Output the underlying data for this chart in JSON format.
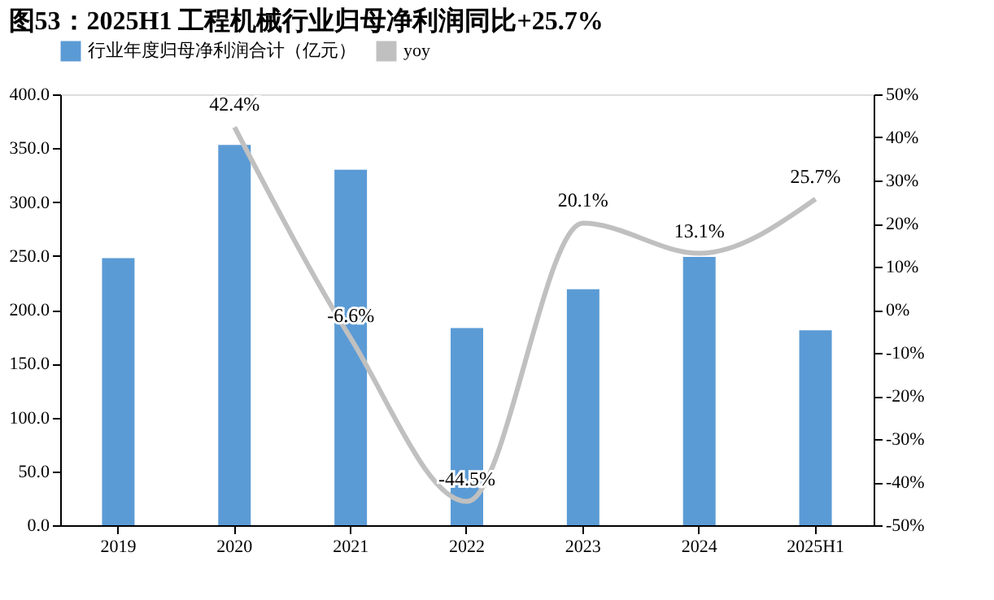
{
  "chart_data": {
    "type": "bar",
    "title": "图53：2025H1 工程机械行业归母净利润同比+25.7%",
    "categories": [
      "2019",
      "2020",
      "2021",
      "2022",
      "2023",
      "2024",
      "2025H1"
    ],
    "series": [
      {
        "name": "行业年度归母净利润合计（亿元）",
        "type": "bar",
        "color": "#5b9bd5",
        "values": [
          248,
          353,
          330,
          183,
          219,
          249,
          181
        ]
      },
      {
        "name": "yoy",
        "type": "line",
        "axis": "y2",
        "color": "#c0c0c0",
        "values": [
          null,
          42.4,
          -6.6,
          -44.5,
          20.1,
          13.1,
          25.7
        ],
        "value_labels": [
          null,
          "42.4%",
          "-6.6%",
          "-44.5%",
          "20.1%",
          "13.1%",
          "25.7%"
        ]
      }
    ],
    "ylim": [
      0,
      400
    ],
    "yticks": [
      {
        "value": 0,
        "label": "0.0"
      },
      {
        "value": 50,
        "label": "50.0"
      },
      {
        "value": 100,
        "label": "100.0"
      },
      {
        "value": 150,
        "label": "150.0"
      },
      {
        "value": 200,
        "label": "200.0"
      },
      {
        "value": 250,
        "label": "250.0"
      },
      {
        "value": 300,
        "label": "300.0"
      },
      {
        "value": 350,
        "label": "350.0"
      },
      {
        "value": 400,
        "label": "400.0"
      }
    ],
    "y2lim": [
      -50,
      50
    ],
    "y2ticks": [
      {
        "value": -50,
        "label": "-50%"
      },
      {
        "value": -40,
        "label": "-40%"
      },
      {
        "value": -30,
        "label": "-30%"
      },
      {
        "value": -20,
        "label": "-20%"
      },
      {
        "value": -10,
        "label": "-10%"
      },
      {
        "value": 0,
        "label": "0%"
      },
      {
        "value": 10,
        "label": "10%"
      },
      {
        "value": 20,
        "label": "20%"
      },
      {
        "value": 30,
        "label": "30%"
      },
      {
        "value": 40,
        "label": "40%"
      },
      {
        "value": 50,
        "label": "50%"
      }
    ],
    "legend": "top",
    "grid": false
  }
}
